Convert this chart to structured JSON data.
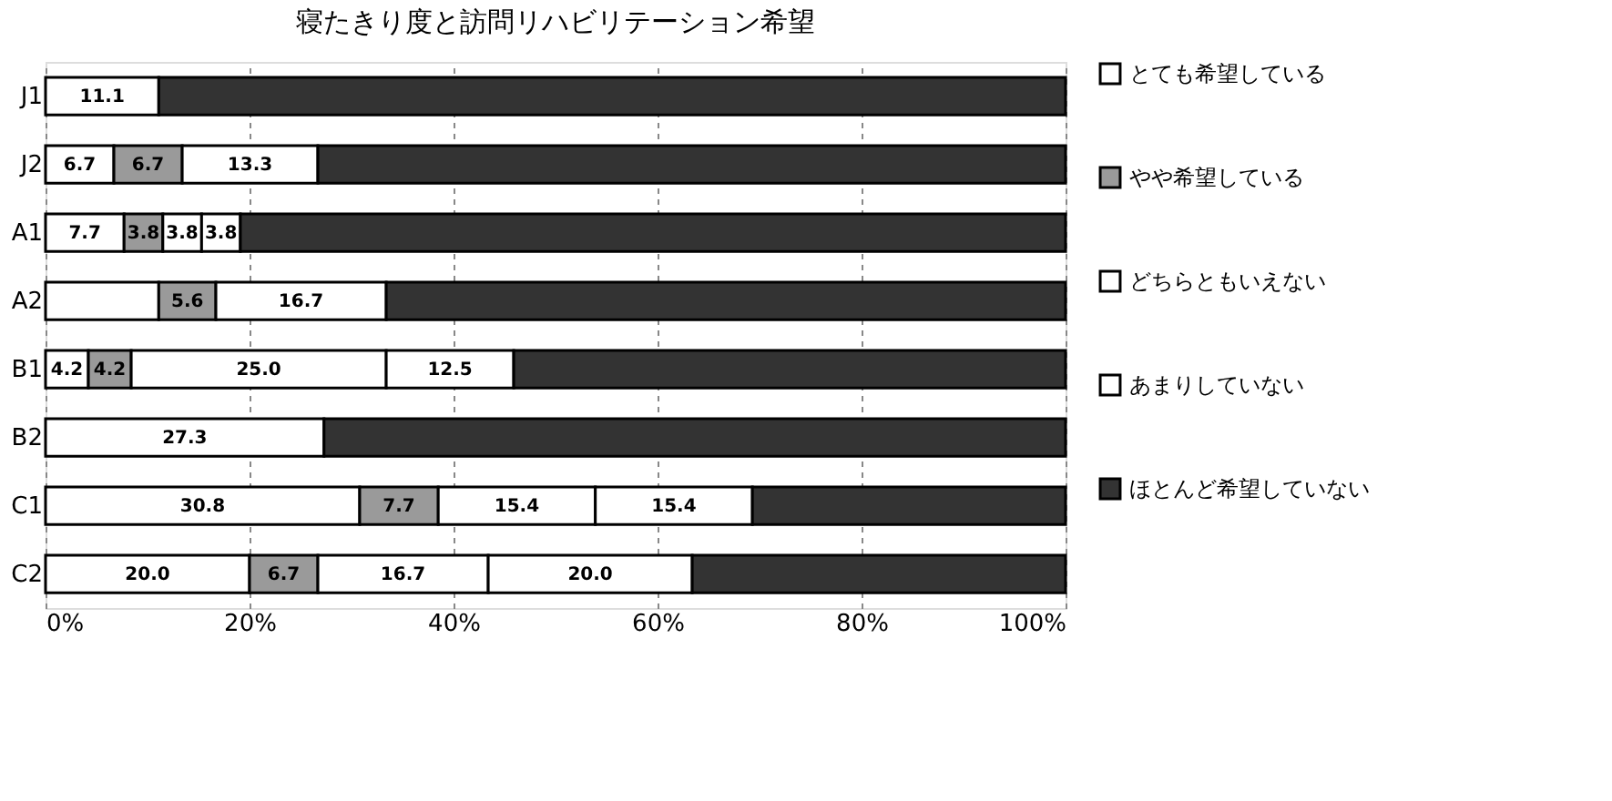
{
  "chart_data": {
    "type": "bar",
    "orientation": "horizontal",
    "stacked": true,
    "title": "寝たきり度と訪問リハビリテーション希望",
    "categories": [
      "J1",
      "J2",
      "A1",
      "A2",
      "B1",
      "B2",
      "C1",
      "C2"
    ],
    "series": [
      {
        "name": "とても希望している",
        "color": "#ffffff",
        "values": [
          11.1,
          6.7,
          7.7,
          11.1,
          4.2,
          27.3,
          30.8,
          20.0
        ],
        "value_labels": [
          "11.1",
          "6.7",
          "7.7",
          null,
          "4.2",
          "27.3",
          "30.8",
          "20.0"
        ]
      },
      {
        "name": "やや希望している",
        "color": "#9a9a9a",
        "values": [
          null,
          6.7,
          3.8,
          5.6,
          4.2,
          null,
          7.7,
          6.7
        ],
        "value_labels": [
          null,
          "6.7",
          "3.8",
          "5.6",
          "4.2",
          null,
          "7.7",
          "6.7"
        ]
      },
      {
        "name": "どちらともいえない",
        "color": "#ffffff",
        "values": [
          null,
          13.3,
          3.8,
          16.7,
          25.0,
          null,
          15.4,
          16.7
        ],
        "value_labels": [
          null,
          "13.3",
          "3.8",
          "16.7",
          "25.0",
          null,
          "15.4",
          "16.7"
        ]
      },
      {
        "name": "あまりしていない",
        "color": "#ffffff",
        "values": [
          null,
          null,
          3.8,
          null,
          12.5,
          null,
          15.4,
          20.0
        ],
        "value_labels": [
          null,
          null,
          "3.8",
          null,
          "12.5",
          null,
          "15.4",
          "20.0"
        ]
      },
      {
        "name": "ほとんど希望していない",
        "color": "#333333",
        "values": [
          88.9,
          73.3,
          80.9,
          66.6,
          54.1,
          72.7,
          30.7,
          36.6
        ],
        "value_labels": [
          null,
          null,
          null,
          null,
          null,
          null,
          null,
          null
        ]
      }
    ],
    "xlim": [
      0,
      100
    ],
    "xticks": [
      {
        "value": 0,
        "label": "0%"
      },
      {
        "value": 20,
        "label": "20%"
      },
      {
        "value": 40,
        "label": "40%"
      },
      {
        "value": 60,
        "label": "60%"
      },
      {
        "value": 80,
        "label": "80%"
      },
      {
        "value": 100,
        "label": "100%"
      }
    ],
    "grid": "x",
    "legend": "right"
  }
}
